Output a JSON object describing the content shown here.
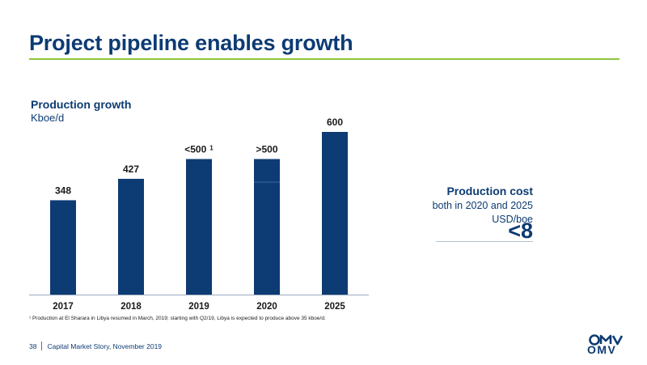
{
  "slide": {
    "title": "Project pipeline enables growth",
    "footnote": "¹ Production at El Sharara in Libya resumed in March, 2019; starting with Q2/19, Libya is expected to produce above 35 kboe/d.",
    "page_number": "38",
    "footer_text": "Capital Market Story, November 2019",
    "logo_text": "OMV"
  },
  "production_cost": {
    "title": "Production cost",
    "subtitle": "both in 2020 and 2025",
    "unit": "USD/boe",
    "value": "<8"
  },
  "colors": {
    "bar": "#0d3b73",
    "accent_rule": "#8cc63f",
    "title": "#0d3b73"
  },
  "chart_data": {
    "type": "bar",
    "title": "Production growth",
    "ylabel": "Kboe/d",
    "xlabel": "",
    "categories": [
      "2017",
      "2018",
      "2019",
      "2020",
      "2025"
    ],
    "values": [
      348,
      427,
      500,
      500,
      600
    ],
    "data_labels": [
      "348",
      "427",
      "<500",
      ">500",
      "600"
    ],
    "label_superscripts": [
      "",
      "",
      "1",
      "",
      ""
    ],
    "ylim": [
      0,
      600
    ],
    "grid": false,
    "legend": "none"
  }
}
